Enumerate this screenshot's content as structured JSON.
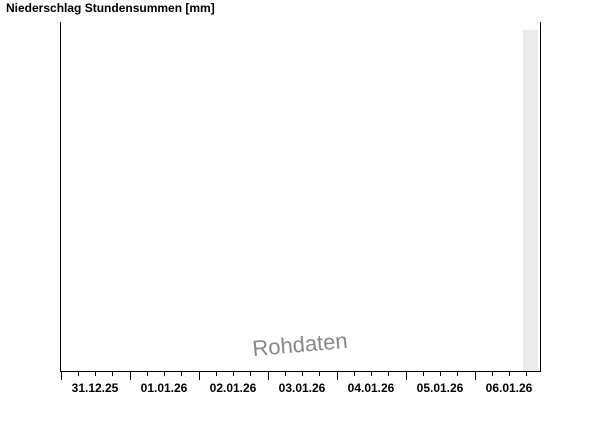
{
  "chart_data": {
    "type": "bar",
    "title": "Niederschlag Stundensummen [mm]",
    "xlabel": "",
    "ylabel": "",
    "categories": [
      "31.12.25",
      "01.01.26",
      "02.01.26",
      "03.01.26",
      "04.01.26",
      "05.01.26",
      "06.01.26"
    ],
    "series": [],
    "watermark": "Rohdaten",
    "grid": false,
    "colors": {
      "axis": "#000000",
      "future_band": "#ebebeb",
      "watermark": "#888888"
    }
  }
}
